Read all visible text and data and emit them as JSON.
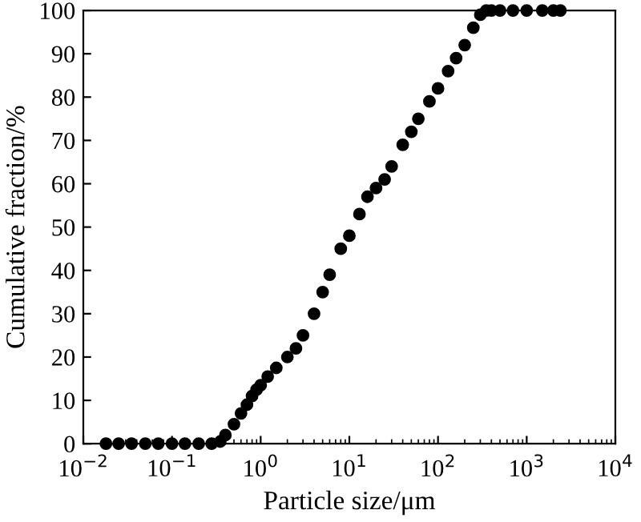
{
  "chart_data": {
    "type": "scatter",
    "xlabel": "Particle size/μm",
    "ylabel": "Cumulative fraction/%",
    "log": "x",
    "marker": "circle",
    "grid": false,
    "xlim": [
      0.01,
      10000
    ],
    "ylim": [
      0,
      100
    ],
    "xticks": [
      {
        "value": 0.01,
        "label": "10$^{−2}$"
      },
      {
        "value": 0.1,
        "label": "10$^{−1}$"
      },
      {
        "value": 1,
        "label": "10$^{0}$"
      },
      {
        "value": 10,
        "label": "10$^{1}$"
      },
      {
        "value": 100,
        "label": "10$^{2}$"
      },
      {
        "value": 1000,
        "label": "10$^{3}$"
      },
      {
        "value": 10000,
        "label": "10$^{4}$"
      }
    ],
    "yticks": [
      0,
      10,
      20,
      30,
      40,
      50,
      60,
      70,
      80,
      90,
      100
    ],
    "series": [
      {
        "color": "#000000",
        "x": [
          0.018,
          0.025,
          0.035,
          0.05,
          0.07,
          0.1,
          0.14,
          0.2,
          0.28,
          0.35,
          0.4,
          0.5,
          0.6,
          0.7,
          0.8,
          0.9,
          1,
          1.2,
          1.5,
          2,
          2.5,
          3,
          4,
          5,
          6,
          8,
          10,
          13,
          16,
          20,
          25,
          30,
          40,
          50,
          60,
          80,
          100,
          130,
          160,
          200,
          250,
          300,
          350,
          400,
          500,
          700,
          1000,
          1500,
          2000,
          2400
        ],
        "values": [
          0,
          0,
          0,
          0,
          0,
          0,
          0,
          0,
          0,
          0.5,
          2,
          4.5,
          7,
          9,
          11,
          12.5,
          13.5,
          15.5,
          17.5,
          20,
          22,
          25,
          30,
          35,
          39,
          45,
          48,
          53,
          57,
          59,
          61,
          64,
          69,
          72,
          75,
          79,
          82,
          86,
          89,
          92,
          96,
          99,
          100,
          100,
          100,
          100,
          100,
          100,
          100,
          100
        ]
      }
    ]
  }
}
